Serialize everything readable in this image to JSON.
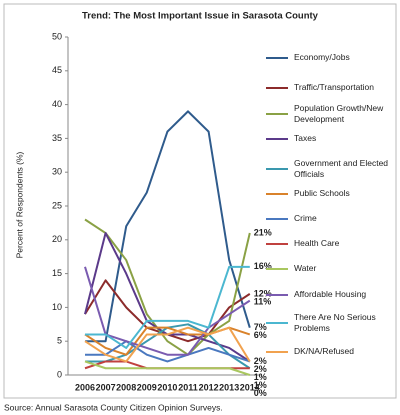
{
  "chart_data": {
    "type": "line",
    "title": "Trend: The Most Important Issue in Sarasota County",
    "y_label": "Percent of Respondents (%)",
    "source": "Source: Annual Sarasota County Citizen Opinion Surveys.",
    "categories": [
      "2006",
      "2007",
      "2008",
      "2009",
      "2010",
      "2011",
      "2012",
      "2013",
      "2014"
    ],
    "ylim": [
      0,
      50
    ],
    "yticks": [
      0,
      5,
      10,
      15,
      20,
      25,
      30,
      35,
      40,
      45,
      50
    ],
    "grid": false,
    "legend": "right",
    "series": [
      {
        "name": "Economy/Jobs",
        "color": "#2f5b8c",
        "values": [
          5,
          5,
          22,
          27,
          36,
          39,
          36,
          17,
          7
        ],
        "value_labels": [
          null,
          null,
          null,
          null,
          null,
          null,
          null,
          null,
          "7%"
        ]
      },
      {
        "name": "Traffic/Transportation",
        "color": "#8c2b2b",
        "values": [
          9,
          14,
          10,
          7,
          6,
          5,
          6,
          10,
          12
        ],
        "value_labels": [
          null,
          null,
          null,
          null,
          null,
          null,
          null,
          null,
          "12%"
        ]
      },
      {
        "name": "Population Growth/New Development",
        "color": "#8aa145",
        "values": [
          23,
          21,
          17,
          9,
          5,
          3,
          6,
          8,
          21
        ],
        "value_labels": [
          null,
          null,
          null,
          null,
          null,
          null,
          null,
          null,
          "21%"
        ]
      },
      {
        "name": "Taxes",
        "color": "#5b3a8a",
        "values": [
          9,
          21,
          15,
          8,
          6,
          6,
          5,
          4,
          2
        ],
        "value_labels": [
          null,
          null,
          null,
          null,
          null,
          null,
          null,
          null,
          "2%"
        ]
      },
      {
        "name": "Government and Elected Officials",
        "color": "#3a98ae",
        "values": [
          2,
          2,
          3,
          5,
          7,
          7.5,
          6,
          3,
          1
        ],
        "value_labels": [
          null,
          null,
          null,
          null,
          null,
          null,
          null,
          null,
          "1%"
        ]
      },
      {
        "name": "Public Schools",
        "color": "#d9822b",
        "values": [
          6,
          4,
          3,
          7,
          7,
          6,
          6,
          7,
          6
        ],
        "value_labels": [
          null,
          null,
          null,
          null,
          null,
          null,
          null,
          null,
          "6%"
        ]
      },
      {
        "name": "Crime",
        "color": "#4a78bf",
        "values": [
          3,
          3,
          5,
          3,
          2,
          3,
          4,
          3,
          2
        ],
        "value_labels": [
          null,
          null,
          null,
          null,
          null,
          null,
          null,
          null,
          "2%"
        ]
      },
      {
        "name": "Health Care",
        "color": "#c0413f",
        "values": [
          1,
          2,
          2,
          1,
          1,
          1,
          1,
          1,
          1
        ],
        "value_labels": [
          null,
          null,
          null,
          null,
          null,
          null,
          null,
          null,
          "1%"
        ]
      },
      {
        "name": "Water",
        "color": "#a9c75f",
        "values": [
          2,
          1,
          1,
          1,
          1,
          1,
          1,
          1,
          0
        ],
        "value_labels": [
          null,
          null,
          null,
          null,
          null,
          null,
          null,
          null,
          "0%"
        ]
      },
      {
        "name": "Affordable Housing",
        "color": "#7a5bb0",
        "values": [
          16,
          6,
          5,
          4,
          3,
          3,
          7,
          9,
          11
        ],
        "value_labels": [
          null,
          null,
          null,
          null,
          null,
          null,
          null,
          null,
          "11%"
        ]
      },
      {
        "name": "There Are No Serious Problems",
        "color": "#4bb7d0",
        "values": [
          6,
          6,
          4,
          8,
          8,
          8,
          7,
          16,
          16
        ],
        "value_labels": [
          null,
          null,
          null,
          null,
          null,
          null,
          null,
          null,
          "16%"
        ]
      },
      {
        "name": "DK/NA/Refused",
        "color": "#f1a24f",
        "values": [
          5,
          3,
          2,
          6,
          6,
          7,
          6,
          7,
          2
        ]
      }
    ]
  }
}
